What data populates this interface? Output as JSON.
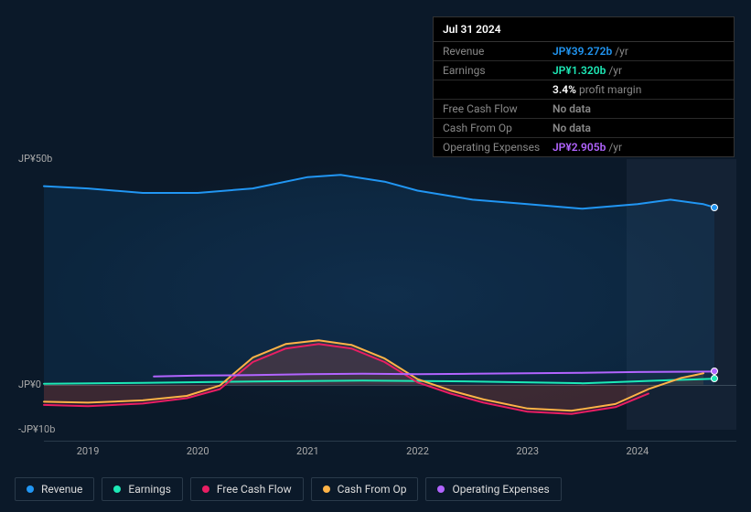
{
  "tooltip": {
    "date": "Jul 31 2024",
    "rows": [
      {
        "label": "Revenue",
        "value": "JP¥39.272b",
        "unit": "/yr",
        "color": "#2196f3"
      },
      {
        "label": "Earnings",
        "value": "JP¥1.320b",
        "unit": "/yr",
        "color": "#1de9b6"
      },
      {
        "label": "",
        "value": "3.4%",
        "unit": "profit margin",
        "color": "#ffffff"
      },
      {
        "label": "Free Cash Flow",
        "value": "No data",
        "unit": "",
        "color": "#888888"
      },
      {
        "label": "Cash From Op",
        "value": "No data",
        "unit": "",
        "color": "#888888"
      },
      {
        "label": "Operating Expenses",
        "value": "JP¥2.905b",
        "unit": "/yr",
        "color": "#b264ff"
      }
    ]
  },
  "chart": {
    "type": "line-area",
    "background_color": "#0b1929",
    "grid_color": "#2a3a4a",
    "y": {
      "min": -10,
      "max": 50,
      "ticks": [
        {
          "v": 50,
          "label": "JP¥50b"
        },
        {
          "v": 0,
          "label": "JP¥0"
        },
        {
          "v": -10,
          "label": "-JP¥10b"
        }
      ]
    },
    "x": {
      "min": 2018.6,
      "max": 2024.9,
      "ticks": [
        2019,
        2020,
        2021,
        2022,
        2023,
        2024
      ],
      "future_from": 2023.9
    },
    "series": {
      "revenue": {
        "label": "Revenue",
        "color": "#2196f3",
        "line_width": 2,
        "fill_opacity": 0.1,
        "data": [
          [
            2018.6,
            44
          ],
          [
            2019.0,
            43.5
          ],
          [
            2019.5,
            42.5
          ],
          [
            2020.0,
            42.5
          ],
          [
            2020.5,
            43.5
          ],
          [
            2021.0,
            46
          ],
          [
            2021.3,
            46.5
          ],
          [
            2021.7,
            45
          ],
          [
            2022.0,
            43
          ],
          [
            2022.5,
            41
          ],
          [
            2023.0,
            40
          ],
          [
            2023.5,
            39
          ],
          [
            2024.0,
            40
          ],
          [
            2024.3,
            41
          ],
          [
            2024.6,
            40
          ],
          [
            2024.7,
            39.3
          ]
        ]
      },
      "earnings": {
        "label": "Earnings",
        "color": "#1de9b6",
        "line_width": 2,
        "fill_opacity": 0,
        "data": [
          [
            2018.6,
            0.2
          ],
          [
            2019.5,
            0.4
          ],
          [
            2020.5,
            0.7
          ],
          [
            2021.5,
            0.9
          ],
          [
            2022.5,
            0.7
          ],
          [
            2023.5,
            0.3
          ],
          [
            2024.3,
            1.0
          ],
          [
            2024.7,
            1.3
          ]
        ]
      },
      "fcf": {
        "label": "Free Cash Flow",
        "color": "#e91e63",
        "line_width": 2,
        "fill_opacity": 0.12,
        "data": [
          [
            2018.6,
            -4.5
          ],
          [
            2019.0,
            -4.8
          ],
          [
            2019.5,
            -4.2
          ],
          [
            2019.9,
            -3.0
          ],
          [
            2020.2,
            -1.0
          ],
          [
            2020.5,
            5.0
          ],
          [
            2020.8,
            8.0
          ],
          [
            2021.1,
            9.0
          ],
          [
            2021.4,
            8.0
          ],
          [
            2021.7,
            5.0
          ],
          [
            2022.0,
            0.5
          ],
          [
            2022.3,
            -2.0
          ],
          [
            2022.6,
            -4.0
          ],
          [
            2023.0,
            -6.0
          ],
          [
            2023.4,
            -6.5
          ],
          [
            2023.8,
            -5.0
          ],
          [
            2024.1,
            -2.0
          ]
        ]
      },
      "cfo": {
        "label": "Cash From Op",
        "color": "#ffb347",
        "line_width": 2,
        "fill_opacity": 0.1,
        "data": [
          [
            2018.6,
            -3.8
          ],
          [
            2019.0,
            -4.0
          ],
          [
            2019.5,
            -3.5
          ],
          [
            2019.9,
            -2.5
          ],
          [
            2020.2,
            -0.2
          ],
          [
            2020.5,
            6.0
          ],
          [
            2020.8,
            9.0
          ],
          [
            2021.1,
            9.8
          ],
          [
            2021.4,
            8.8
          ],
          [
            2021.7,
            5.8
          ],
          [
            2022.0,
            1.2
          ],
          [
            2022.3,
            -1.3
          ],
          [
            2022.6,
            -3.3
          ],
          [
            2023.0,
            -5.3
          ],
          [
            2023.4,
            -5.8
          ],
          [
            2023.8,
            -4.3
          ],
          [
            2024.1,
            -1.0
          ],
          [
            2024.4,
            1.5
          ],
          [
            2024.6,
            2.5
          ]
        ]
      },
      "opex": {
        "label": "Operating Expenses",
        "color": "#b264ff",
        "line_width": 2,
        "fill_opacity": 0,
        "data": [
          [
            2019.6,
            1.8
          ],
          [
            2020.0,
            2.0
          ],
          [
            2020.5,
            2.1
          ],
          [
            2021.0,
            2.3
          ],
          [
            2021.5,
            2.4
          ],
          [
            2022.0,
            2.3
          ],
          [
            2022.5,
            2.4
          ],
          [
            2023.0,
            2.5
          ],
          [
            2023.5,
            2.6
          ],
          [
            2024.0,
            2.8
          ],
          [
            2024.7,
            2.9
          ]
        ]
      }
    },
    "legend_order": [
      "revenue",
      "earnings",
      "fcf",
      "cfo",
      "opex"
    ],
    "end_markers": [
      {
        "series": "revenue",
        "x": 2024.7,
        "y": 39.3
      },
      {
        "series": "earnings",
        "x": 2024.7,
        "y": 1.3
      },
      {
        "series": "opex",
        "x": 2024.7,
        "y": 2.9
      }
    ]
  }
}
